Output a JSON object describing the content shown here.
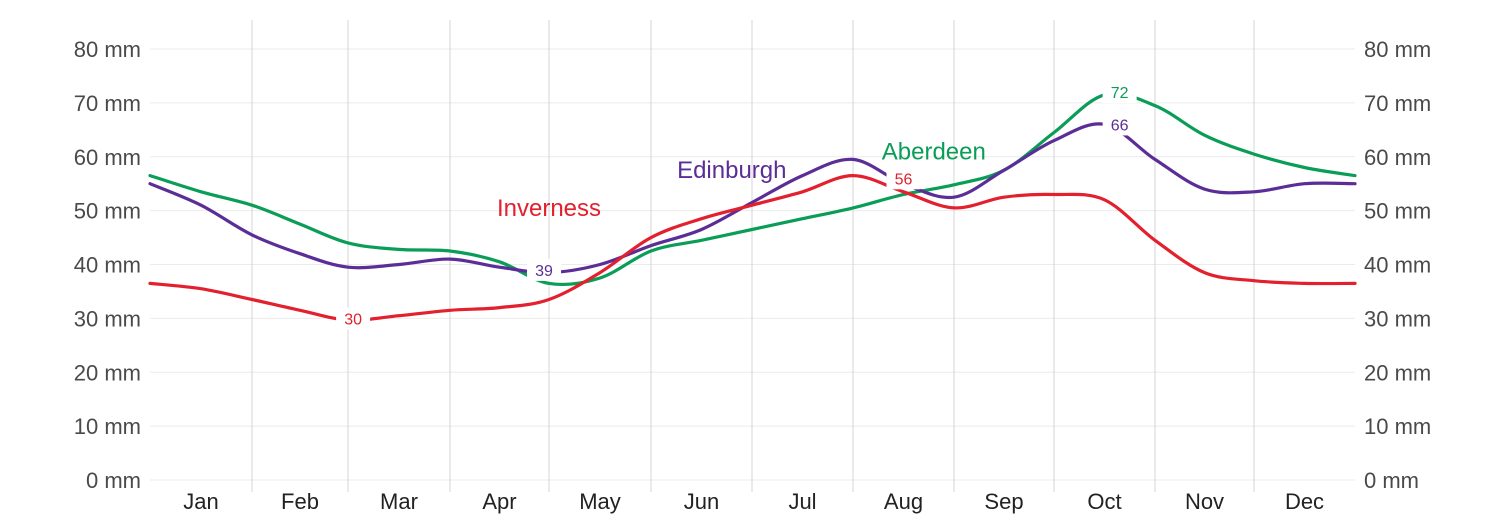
{
  "chart_data": {
    "type": "line",
    "y_unit": "mm",
    "ylim": [
      0,
      80
    ],
    "yticks": [
      0,
      10,
      20,
      30,
      40,
      50,
      60,
      70,
      80
    ],
    "ytick_labels": [
      "0 mm",
      "10 mm",
      "20 mm",
      "30 mm",
      "40 mm",
      "50 mm",
      "60 mm",
      "70 mm",
      "80 mm"
    ],
    "categories": [
      "Jan",
      "Feb",
      "Mar",
      "Apr",
      "May",
      "Jun",
      "Jul",
      "Aug",
      "Sep",
      "Oct",
      "Nov",
      "Dec"
    ],
    "grid": true,
    "series": [
      {
        "name": "Aberdeen",
        "color": "#0a9d58",
        "x": [
          0.0,
          0.5,
          1.0,
          1.5,
          2.0,
          2.5,
          3.0,
          3.5,
          4.0,
          4.5,
          5.0,
          5.5,
          6.0,
          6.5,
          7.0,
          7.5,
          8.0,
          8.5,
          9.0,
          9.5,
          10.0,
          10.5,
          11.0,
          11.5,
          12.0
        ],
        "values": [
          56.5,
          53.5,
          51,
          47.5,
          44,
          42.8,
          42.5,
          40.5,
          36.5,
          37.5,
          42.5,
          44.5,
          46.5,
          48.5,
          50.5,
          53,
          54.8,
          57.5,
          64.5,
          71.5,
          69.5,
          64,
          60.5,
          58,
          56.5
        ],
        "labels": [
          {
            "x": 9.65,
            "value": 72,
            "text": "72"
          }
        ],
        "name_label_pos": [
          7.8,
          61
        ]
      },
      {
        "name": "Edinburgh",
        "color": "#5b2d96",
        "x": [
          0.0,
          0.5,
          1.0,
          1.5,
          2.0,
          2.5,
          3.0,
          3.5,
          4.0,
          4.5,
          5.0,
          5.5,
          6.0,
          6.5,
          7.0,
          7.5,
          8.0,
          8.5,
          9.0,
          9.5,
          10.0,
          10.5,
          11.0,
          11.5,
          12.0
        ],
        "values": [
          55,
          51,
          45.5,
          42,
          39.5,
          40,
          41,
          39.5,
          38.5,
          40,
          43.5,
          46.5,
          51.5,
          56.5,
          59.5,
          55,
          52.5,
          57.5,
          63,
          66,
          59.5,
          54,
          53.5,
          55,
          55
        ],
        "labels": [
          {
            "x": 3.95,
            "value": 39,
            "text": "39"
          },
          {
            "x": 9.65,
            "value": 66,
            "text": "66"
          }
        ],
        "name_label_pos": [
          5.8,
          57.5
        ]
      },
      {
        "name": "Inverness",
        "color": "#e2202e",
        "x": [
          0.0,
          0.5,
          1.0,
          1.5,
          2.0,
          2.5,
          3.0,
          3.5,
          4.0,
          4.5,
          5.0,
          5.5,
          6.0,
          6.5,
          7.0,
          7.5,
          8.0,
          8.5,
          9.0,
          9.5,
          10.0,
          10.5,
          11.0,
          11.5,
          12.0
        ],
        "values": [
          36.5,
          35.5,
          33.5,
          31.5,
          29.7,
          30.5,
          31.5,
          32,
          33.5,
          38.5,
          45,
          48.5,
          51,
          53.5,
          56.5,
          53.5,
          50.5,
          52.5,
          53,
          52,
          44.5,
          38.5,
          37,
          36.5,
          36.5
        ],
        "labels": [
          {
            "x": 2.05,
            "value": 30,
            "text": "30"
          },
          {
            "x": 7.5,
            "value": 56,
            "text": "56"
          }
        ],
        "name_label_pos": [
          4.0,
          50.5
        ]
      }
    ]
  }
}
